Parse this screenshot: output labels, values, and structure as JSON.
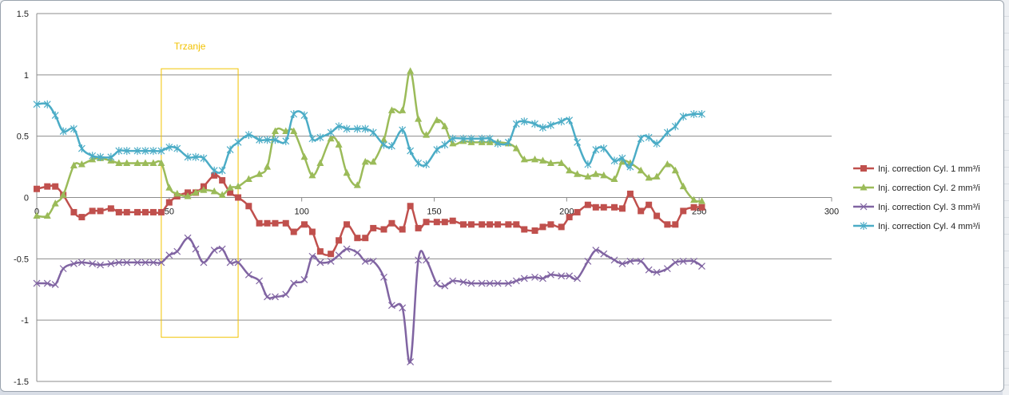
{
  "chart_data": {
    "type": "line",
    "title": "",
    "xlabel": "",
    "ylabel": "",
    "xlim": [
      0,
      300
    ],
    "ylim": [
      -1.5,
      1.5
    ],
    "x_ticks": [
      0,
      50,
      100,
      150,
      200,
      250,
      300
    ],
    "y_ticks": [
      -1.5,
      -1,
      -0.5,
      0,
      0.5,
      1,
      1.5
    ],
    "x_tick_labels": [
      "0",
      "50",
      "100",
      "150",
      "200",
      "250",
      "300"
    ],
    "y_tick_labels": [
      "-1.5",
      "-1",
      "-0.5",
      "0",
      "0.5",
      "1",
      "1.5"
    ],
    "grid": "horizontal",
    "legend_position": "right",
    "annotation": {
      "label": "Trzanje",
      "x_range": [
        47,
        76
      ],
      "y_range": [
        -1.14,
        1.05
      ],
      "color": "#f2c200"
    },
    "series": [
      {
        "name": "Inj. correction Cyl. 1 mm³/i",
        "color": "#c0504d",
        "marker": "square",
        "x": [
          0,
          4,
          7,
          10,
          14,
          17,
          21,
          24,
          28,
          31,
          34,
          38,
          41,
          44,
          47,
          50,
          53,
          57,
          60,
          63,
          67,
          70,
          73,
          76,
          80,
          84,
          87,
          90,
          94,
          97,
          101,
          104,
          107,
          111,
          114,
          117,
          121,
          124,
          127,
          131,
          134,
          138,
          141,
          144,
          147,
          151,
          154,
          157,
          161,
          164,
          168,
          171,
          174,
          178,
          181,
          184,
          188,
          191,
          194,
          198,
          201,
          204,
          208,
          211,
          214,
          218,
          221,
          224,
          228,
          231,
          234,
          238,
          241,
          244,
          248,
          251
        ],
        "values": [
          0.07,
          0.09,
          0.09,
          0.02,
          -0.12,
          -0.16,
          -0.11,
          -0.11,
          -0.09,
          -0.12,
          -0.12,
          -0.12,
          -0.12,
          -0.12,
          -0.12,
          -0.04,
          0.01,
          0.04,
          0.04,
          0.09,
          0.18,
          0.14,
          0.04,
          0.0,
          -0.07,
          -0.21,
          -0.21,
          -0.21,
          -0.21,
          -0.28,
          -0.22,
          -0.28,
          -0.44,
          -0.46,
          -0.35,
          -0.22,
          -0.33,
          -0.33,
          -0.25,
          -0.26,
          -0.21,
          -0.26,
          -0.07,
          -0.25,
          -0.2,
          -0.2,
          -0.2,
          -0.19,
          -0.22,
          -0.22,
          -0.22,
          -0.22,
          -0.22,
          -0.22,
          -0.22,
          -0.26,
          -0.27,
          -0.24,
          -0.22,
          -0.24,
          -0.16,
          -0.12,
          -0.06,
          -0.08,
          -0.08,
          -0.08,
          -0.09,
          0.03,
          -0.11,
          -0.06,
          -0.15,
          -0.22,
          -0.22,
          -0.11,
          -0.08,
          -0.08
        ]
      },
      {
        "name": "Inj. correction Cyl. 2 mm³/i",
        "color": "#9bbb59",
        "marker": "triangle",
        "x": [
          0,
          4,
          7,
          10,
          14,
          17,
          21,
          24,
          28,
          31,
          34,
          38,
          41,
          44,
          47,
          50,
          53,
          57,
          60,
          63,
          67,
          70,
          73,
          76,
          80,
          84,
          87,
          90,
          94,
          97,
          101,
          104,
          107,
          111,
          114,
          117,
          121,
          124,
          127,
          131,
          134,
          138,
          141,
          144,
          147,
          151,
          154,
          157,
          161,
          164,
          168,
          171,
          174,
          178,
          181,
          184,
          188,
          191,
          194,
          198,
          201,
          204,
          208,
          211,
          214,
          218,
          221,
          224,
          228,
          231,
          234,
          238,
          241,
          244,
          248,
          251
        ],
        "values": [
          -0.15,
          -0.15,
          -0.05,
          0.02,
          0.26,
          0.27,
          0.31,
          0.32,
          0.3,
          0.28,
          0.28,
          0.28,
          0.28,
          0.28,
          0.28,
          0.08,
          0.03,
          0.01,
          0.04,
          0.06,
          0.05,
          0.02,
          0.08,
          0.09,
          0.15,
          0.19,
          0.25,
          0.54,
          0.54,
          0.54,
          0.33,
          0.18,
          0.28,
          0.48,
          0.43,
          0.2,
          0.1,
          0.29,
          0.29,
          0.47,
          0.71,
          0.71,
          1.03,
          0.64,
          0.51,
          0.63,
          0.58,
          0.44,
          0.46,
          0.45,
          0.45,
          0.45,
          0.45,
          0.44,
          0.4,
          0.31,
          0.31,
          0.3,
          0.28,
          0.28,
          0.22,
          0.19,
          0.17,
          0.19,
          0.18,
          0.15,
          0.29,
          0.28,
          0.22,
          0.16,
          0.17,
          0.27,
          0.22,
          0.09,
          -0.02,
          -0.03
        ]
      },
      {
        "name": "Inj. correction Cyl. 3 mm³/i",
        "color": "#8064a2",
        "marker": "x",
        "x": [
          0,
          4,
          7,
          10,
          14,
          17,
          21,
          24,
          28,
          31,
          34,
          38,
          41,
          44,
          47,
          50,
          53,
          57,
          60,
          63,
          67,
          70,
          73,
          76,
          80,
          84,
          87,
          90,
          94,
          97,
          101,
          104,
          107,
          111,
          114,
          117,
          121,
          124,
          127,
          131,
          134,
          138,
          141,
          144,
          147,
          151,
          154,
          157,
          161,
          164,
          168,
          171,
          174,
          178,
          181,
          184,
          188,
          191,
          194,
          198,
          201,
          204,
          208,
          211,
          214,
          218,
          221,
          224,
          228,
          231,
          234,
          238,
          241,
          244,
          248,
          251
        ],
        "values": [
          -0.7,
          -0.7,
          -0.71,
          -0.58,
          -0.54,
          -0.53,
          -0.54,
          -0.55,
          -0.54,
          -0.53,
          -0.53,
          -0.53,
          -0.53,
          -0.53,
          -0.53,
          -0.47,
          -0.44,
          -0.33,
          -0.42,
          -0.53,
          -0.43,
          -0.42,
          -0.53,
          -0.53,
          -0.63,
          -0.68,
          -0.81,
          -0.81,
          -0.79,
          -0.7,
          -0.67,
          -0.48,
          -0.53,
          -0.52,
          -0.47,
          -0.42,
          -0.45,
          -0.52,
          -0.52,
          -0.65,
          -0.88,
          -0.9,
          -1.34,
          -0.51,
          -0.51,
          -0.7,
          -0.72,
          -0.68,
          -0.69,
          -0.7,
          -0.7,
          -0.7,
          -0.7,
          -0.7,
          -0.68,
          -0.66,
          -0.65,
          -0.66,
          -0.63,
          -0.64,
          -0.64,
          -0.66,
          -0.52,
          -0.43,
          -0.46,
          -0.51,
          -0.54,
          -0.52,
          -0.52,
          -0.59,
          -0.61,
          -0.58,
          -0.53,
          -0.52,
          -0.52,
          -0.56
        ]
      },
      {
        "name": "Inj. correction Cyl. 4 mm³/i",
        "color": "#4bacc6",
        "marker": "asterisk",
        "x": [
          0,
          4,
          7,
          10,
          14,
          17,
          21,
          24,
          28,
          31,
          34,
          38,
          41,
          44,
          47,
          50,
          53,
          57,
          60,
          63,
          67,
          70,
          73,
          76,
          80,
          84,
          87,
          90,
          94,
          97,
          101,
          104,
          107,
          111,
          114,
          117,
          121,
          124,
          127,
          131,
          134,
          138,
          141,
          144,
          147,
          151,
          154,
          157,
          161,
          164,
          168,
          171,
          174,
          178,
          181,
          184,
          188,
          191,
          194,
          198,
          201,
          204,
          208,
          211,
          214,
          218,
          221,
          224,
          228,
          231,
          234,
          238,
          241,
          244,
          248,
          251
        ],
        "values": [
          0.76,
          0.76,
          0.67,
          0.54,
          0.56,
          0.4,
          0.34,
          0.33,
          0.33,
          0.38,
          0.38,
          0.38,
          0.38,
          0.38,
          0.38,
          0.41,
          0.4,
          0.33,
          0.33,
          0.32,
          0.22,
          0.22,
          0.39,
          0.45,
          0.51,
          0.47,
          0.47,
          0.47,
          0.46,
          0.68,
          0.67,
          0.48,
          0.49,
          0.53,
          0.58,
          0.56,
          0.56,
          0.56,
          0.53,
          0.43,
          0.42,
          0.55,
          0.38,
          0.28,
          0.27,
          0.39,
          0.43,
          0.48,
          0.48,
          0.48,
          0.48,
          0.48,
          0.44,
          0.45,
          0.6,
          0.62,
          0.6,
          0.57,
          0.59,
          0.62,
          0.63,
          0.45,
          0.27,
          0.39,
          0.4,
          0.3,
          0.32,
          0.25,
          0.48,
          0.49,
          0.44,
          0.53,
          0.58,
          0.66,
          0.68,
          0.68
        ]
      }
    ]
  }
}
